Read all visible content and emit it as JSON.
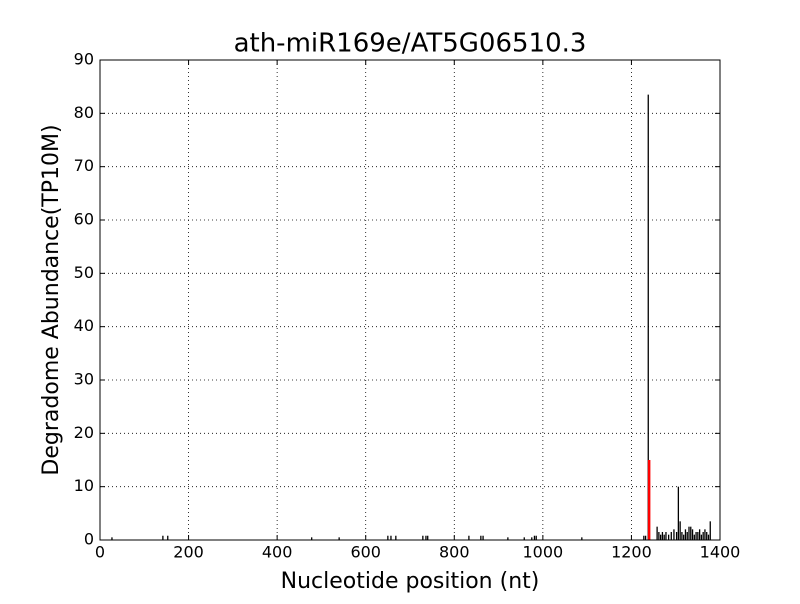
{
  "chart_data": {
    "type": "stem",
    "title": "ath-miR169e/AT5G06510.3",
    "xlabel": "Nucleotide position (nt)",
    "ylabel": "Degradome Abundance(TP10M)",
    "xlim": [
      0,
      1400
    ],
    "xticks": [
      0,
      200,
      400,
      600,
      800,
      1000,
      1200,
      1400
    ],
    "ylim": [
      0,
      90
    ],
    "yticks": [
      0,
      10,
      20,
      30,
      40,
      50,
      60,
      70,
      80,
      90
    ],
    "grid": true,
    "color": "#000000",
    "x": [
      27,
      142,
      153,
      478,
      540,
      650,
      657,
      668,
      729,
      736,
      740,
      833,
      860,
      865,
      921,
      958,
      975,
      981,
      985,
      1088,
      1228,
      1232,
      1238,
      1258,
      1262,
      1266,
      1270,
      1274,
      1278,
      1284,
      1290,
      1296,
      1302,
      1306,
      1310,
      1314,
      1318,
      1322,
      1326,
      1330,
      1334,
      1338,
      1342,
      1346,
      1350,
      1354,
      1358,
      1362,
      1366,
      1370,
      1374,
      1378
    ],
    "values": [
      0.5,
      0.8,
      0.8,
      0.5,
      0.5,
      0.8,
      0.8,
      0.8,
      0.8,
      0.8,
      0.8,
      0.8,
      0.8,
      0.8,
      0.5,
      0.5,
      0.5,
      0.8,
      0.8,
      0.5,
      0.8,
      0.8,
      83.5,
      2.5,
      1.5,
      1,
      1.5,
      1,
      1.5,
      1,
      1.5,
      2,
      1.5,
      10,
      3.5,
      1.5,
      1,
      2,
      1.5,
      2.5,
      2.5,
      2,
      1,
      1.5,
      1.5,
      2,
      1,
      1.5,
      2,
      1.5,
      1,
      3.5
    ],
    "highlight": {
      "color": "#ff0000",
      "x": [
        1240
      ],
      "values": [
        15
      ]
    }
  }
}
